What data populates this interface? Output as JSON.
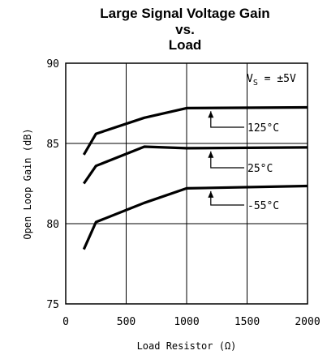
{
  "chart_data": {
    "type": "line",
    "title_lines": [
      "Large Signal Voltage Gain",
      "vs.",
      "Load"
    ],
    "xlabel": "Load Resistor (Ω)",
    "ylabel": "Open Loop Gain (dB)",
    "xlim": [
      0,
      2000
    ],
    "ylim": [
      75,
      90
    ],
    "xticks": [
      "0",
      "500",
      "1000",
      "1500",
      "2000"
    ],
    "yticks": [
      "75",
      "80",
      "85",
      "90"
    ],
    "grid": true,
    "annotation": "V_S = ±5V",
    "series": [
      {
        "name": "125°C",
        "points": [
          [
            150,
            84.3
          ],
          [
            250,
            85.6
          ],
          [
            650,
            86.6
          ],
          [
            1000,
            87.2
          ],
          [
            2000,
            87.25
          ]
        ]
      },
      {
        "name": "25°C",
        "points": [
          [
            150,
            82.5
          ],
          [
            250,
            83.6
          ],
          [
            650,
            84.8
          ],
          [
            1000,
            84.7
          ],
          [
            2000,
            84.75
          ]
        ]
      },
      {
        "name": "-55°C",
        "points": [
          [
            150,
            78.4
          ],
          [
            250,
            80.1
          ],
          [
            650,
            81.3
          ],
          [
            1000,
            82.2
          ],
          [
            2000,
            82.35
          ]
        ]
      }
    ]
  }
}
